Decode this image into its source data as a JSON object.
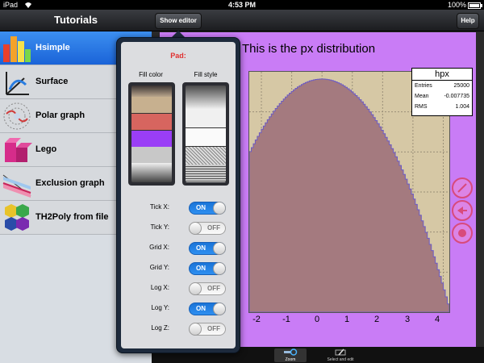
{
  "status_bar": {
    "carrier": "iPad",
    "time": "4:53 PM",
    "battery": "100%",
    "battery_level": 1.0
  },
  "master": {
    "title": "Tutorials",
    "items": [
      {
        "label": "Hsimple",
        "icon": "histogram-icon",
        "selected": true
      },
      {
        "label": "Surface",
        "icon": "surface-plot-icon",
        "selected": false
      },
      {
        "label": "Polar graph",
        "icon": "polar-graph-icon",
        "selected": false
      },
      {
        "label": "Lego",
        "icon": "lego-plot-icon",
        "selected": false
      },
      {
        "label": "Exclusion graph",
        "icon": "exclusion-graph-icon",
        "selected": false
      },
      {
        "label": "TH2Poly from file",
        "icon": "th2poly-icon",
        "selected": false
      }
    ]
  },
  "toolbar": {
    "show_editor_label": "Show editor",
    "help_label": "Help"
  },
  "editor": {
    "object_label": "Pad:",
    "fill_color_label": "Fill color",
    "fill_style_label": "Fill style",
    "switches": [
      {
        "label": "Tick X:",
        "state": "ON",
        "on": true
      },
      {
        "label": "Tick Y:",
        "state": "OFF",
        "on": false
      },
      {
        "label": "Grid X:",
        "state": "ON",
        "on": true
      },
      {
        "label": "Grid Y:",
        "state": "ON",
        "on": true
      },
      {
        "label": "Log X:",
        "state": "OFF",
        "on": false
      },
      {
        "label": "Log Y:",
        "state": "ON",
        "on": true
      },
      {
        "label": "Log Z:",
        "state": "OFF",
        "on": false
      }
    ]
  },
  "plot": {
    "title": "This is the px distribution",
    "stats": {
      "name": "hpx",
      "rows": [
        {
          "key": "Entries",
          "value": "25000"
        },
        {
          "key": "Mean",
          "value": "-0.007735"
        },
        {
          "key": "RMS",
          "value": "1.004"
        }
      ]
    },
    "x_ticks": [
      "-2",
      "-1",
      "0",
      "1",
      "2",
      "3",
      "4"
    ],
    "colors": {
      "canvas": "#c97cf6",
      "frame": "#d6c8a5",
      "histogram": "#a47a7f",
      "histogram_line": "#6c5ac4"
    }
  },
  "bottom_toolbar": [
    {
      "label": "Zoom",
      "icon": "zoom-icon",
      "active": true
    },
    {
      "label": "Select and edit",
      "icon": "select-edit-icon",
      "active": false
    }
  ],
  "side_buttons": [
    "pick-icon",
    "back-icon",
    "record-icon"
  ]
}
